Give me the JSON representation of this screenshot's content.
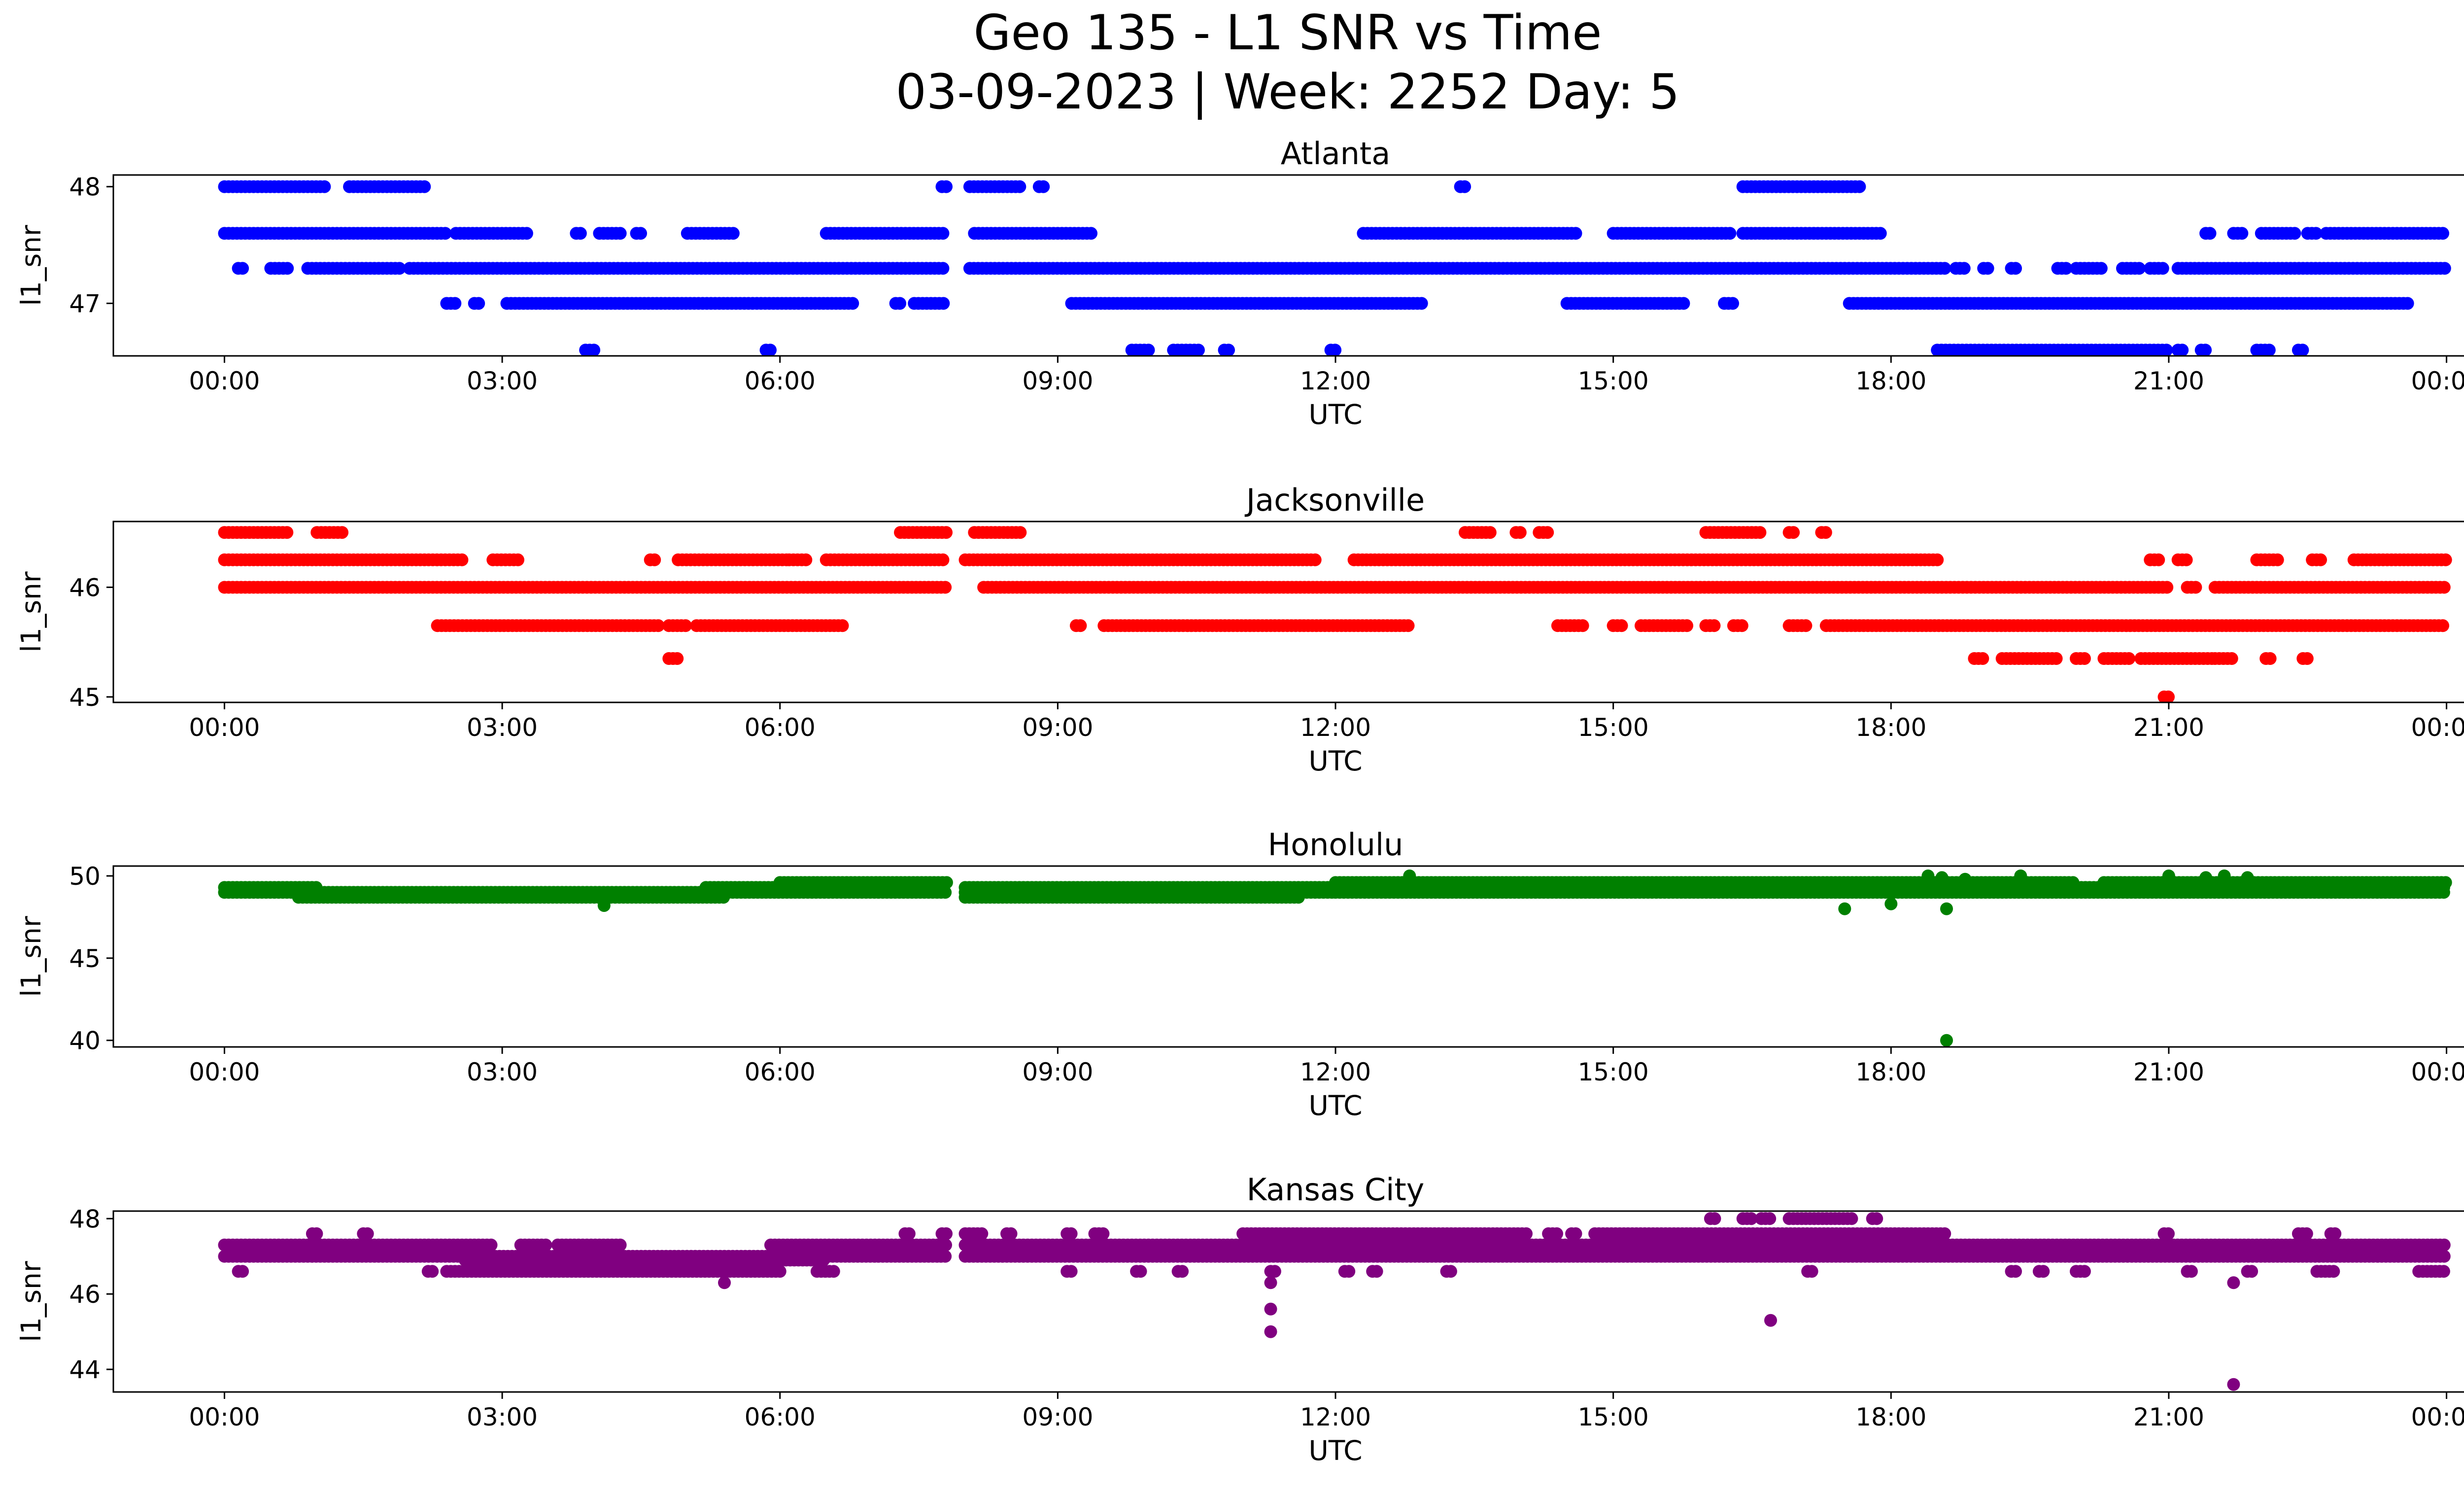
{
  "figure": {
    "title_line1": "Geo 135 - L1 SNR vs Time",
    "title_line2": "03-09-2023 | Week: 2252 Day: 5"
  },
  "chart_data": [
    {
      "type": "scatter",
      "title": "Atlanta",
      "xlabel": "UTC",
      "ylabel": "l1_snr",
      "color": "#0000ff",
      "x_ticks": [
        "00:00",
        "03:00",
        "06:00",
        "09:00",
        "12:00",
        "15:00",
        "18:00",
        "21:00",
        "00:00"
      ],
      "y_ticks": [
        47,
        48
      ],
      "x_range_hours": [
        -1.2,
        25.2
      ],
      "y_range": [
        46.55,
        48.1
      ],
      "levels": [
        {
          "y": 48.0,
          "segments": [
            [
              0.0,
              1.1
            ],
            [
              1.35,
              2.2
            ],
            [
              7.75,
              7.8
            ],
            [
              8.05,
              8.6
            ],
            [
              8.8,
              8.85
            ],
            [
              13.35,
              13.4
            ],
            [
              16.4,
              17.7
            ]
          ]
        },
        {
          "y": 47.6,
          "segments": [
            [
              0.0,
              2.4
            ],
            [
              2.5,
              3.3
            ],
            [
              3.8,
              3.85
            ],
            [
              4.05,
              4.3
            ],
            [
              4.45,
              4.5
            ],
            [
              5.0,
              5.5
            ],
            [
              6.5,
              7.8
            ],
            [
              8.1,
              9.4
            ],
            [
              12.3,
              14.6
            ],
            [
              15.0,
              16.3
            ],
            [
              16.4,
              17.9
            ],
            [
              21.4,
              21.45
            ],
            [
              21.7,
              21.8
            ],
            [
              22.0,
              22.4
            ],
            [
              22.5,
              22.6
            ],
            [
              22.7,
              24.0
            ]
          ]
        },
        {
          "y": 47.3,
          "segments": [
            [
              0.15,
              0.2
            ],
            [
              0.5,
              0.7
            ],
            [
              0.9,
              1.9
            ],
            [
              2.0,
              7.8
            ],
            [
              8.05,
              18.6
            ],
            [
              18.7,
              18.8
            ],
            [
              19.0,
              19.05
            ],
            [
              19.3,
              19.35
            ],
            [
              19.8,
              19.9
            ],
            [
              20.0,
              20.3
            ],
            [
              20.5,
              20.7
            ],
            [
              20.8,
              20.95
            ],
            [
              21.1,
              24.0
            ]
          ]
        },
        {
          "y": 47.0,
          "segments": [
            [
              2.4,
              2.5
            ],
            [
              2.7,
              2.75
            ],
            [
              3.05,
              6.8
            ],
            [
              7.25,
              7.3
            ],
            [
              7.45,
              7.8
            ],
            [
              9.15,
              12.95
            ],
            [
              14.5,
              15.8
            ],
            [
              16.2,
              16.3
            ],
            [
              17.55,
              23.6
            ]
          ]
        },
        {
          "y": 46.6,
          "segments": [
            [
              3.9,
              4.0
            ],
            [
              5.85,
              5.9
            ],
            [
              9.8,
              10.0
            ],
            [
              10.25,
              10.55
            ],
            [
              10.8,
              10.85
            ],
            [
              11.95,
              12.0
            ],
            [
              18.5,
              21.0
            ],
            [
              21.1,
              21.15
            ],
            [
              21.35,
              21.4
            ],
            [
              21.95,
              22.1
            ],
            [
              22.4,
              22.45
            ]
          ]
        }
      ],
      "points": []
    },
    {
      "type": "scatter",
      "title": "Jacksonville",
      "xlabel": "UTC",
      "ylabel": "l1_snr",
      "color": "#ff0000",
      "x_ticks": [
        "00:00",
        "03:00",
        "06:00",
        "09:00",
        "12:00",
        "15:00",
        "18:00",
        "21:00",
        "00:00"
      ],
      "y_ticks": [
        45,
        46
      ],
      "x_range_hours": [
        -1.2,
        25.2
      ],
      "y_range": [
        44.95,
        46.6
      ],
      "levels": [
        {
          "y": 46.5,
          "segments": [
            [
              0.0,
              0.7
            ],
            [
              1.0,
              1.3
            ],
            [
              7.3,
              7.8
            ],
            [
              8.1,
              8.6
            ],
            [
              13.4,
              13.7
            ],
            [
              13.95,
              14.0
            ],
            [
              14.2,
              14.3
            ],
            [
              16.0,
              16.6
            ],
            [
              16.9,
              16.95
            ],
            [
              17.25,
              17.3
            ]
          ]
        },
        {
          "y": 46.25,
          "segments": [
            [
              0.0,
              2.6
            ],
            [
              2.9,
              3.2
            ],
            [
              4.6,
              4.65
            ],
            [
              4.9,
              6.1
            ],
            [
              6.1,
              6.3
            ],
            [
              6.5,
              7.8
            ],
            [
              8.0,
              11.8
            ],
            [
              12.2,
              18.5
            ],
            [
              20.8,
              20.9
            ],
            [
              21.1,
              21.2
            ],
            [
              21.95,
              22.2
            ],
            [
              22.55,
              22.65
            ],
            [
              23.0,
              24.0
            ]
          ]
        },
        {
          "y": 46.0,
          "segments": [
            [
              0.0,
              7.8
            ],
            [
              8.2,
              21.0
            ],
            [
              21.2,
              21.3
            ],
            [
              21.5,
              24.0
            ]
          ]
        },
        {
          "y": 45.65,
          "segments": [
            [
              2.3,
              4.7
            ],
            [
              4.8,
              5.0
            ],
            [
              5.1,
              6.7
            ],
            [
              9.2,
              9.25
            ],
            [
              9.5,
              12.8
            ],
            [
              14.4,
              14.7
            ],
            [
              15.0,
              15.1
            ],
            [
              15.3,
              15.8
            ],
            [
              16.0,
              16.1
            ],
            [
              16.3,
              16.4
            ],
            [
              16.9,
              17.1
            ],
            [
              17.3,
              24.0
            ]
          ]
        },
        {
          "y": 45.35,
          "segments": [
            [
              4.8,
              4.9
            ],
            [
              18.9,
              19.0
            ],
            [
              19.2,
              19.8
            ],
            [
              20.0,
              20.1
            ],
            [
              20.3,
              20.6
            ],
            [
              20.7,
              21.5
            ],
            [
              21.5,
              21.7
            ],
            [
              22.05,
              22.1
            ],
            [
              22.45,
              22.5
            ]
          ]
        },
        {
          "y": 45.0,
          "segments": [
            [
              20.95,
              21.0
            ]
          ]
        }
      ],
      "points": []
    },
    {
      "type": "scatter",
      "title": "Honolulu",
      "xlabel": "UTC",
      "ylabel": "l1_snr",
      "color": "#008000",
      "x_ticks": [
        "00:00",
        "03:00",
        "06:00",
        "09:00",
        "12:00",
        "15:00",
        "18:00",
        "21:00",
        "00:00"
      ],
      "y_ticks": [
        40,
        45,
        50
      ],
      "x_range_hours": [
        -1.2,
        25.2
      ],
      "y_range": [
        39.6,
        50.6
      ],
      "levels": [
        {
          "y": 49.3,
          "segments": [
            [
              0.0,
              1.0
            ],
            [
              5.2,
              7.8
            ],
            [
              8.0,
              12.0
            ],
            [
              12.0,
              24.0
            ]
          ]
        },
        {
          "y": 49.0,
          "segments": [
            [
              0.0,
              7.8
            ],
            [
              8.0,
              12.0
            ],
            [
              12.0,
              24.0
            ]
          ]
        },
        {
          "y": 48.7,
          "segments": [
            [
              0.8,
              5.4
            ],
            [
              8.0,
              11.6
            ]
          ]
        },
        {
          "y": 49.6,
          "segments": [
            [
              6.0,
              7.8
            ],
            [
              12.0,
              20.0
            ],
            [
              20.3,
              24.0
            ]
          ]
        }
      ],
      "points": [
        [
          4.1,
          48.2
        ],
        [
          17.5,
          48.0
        ],
        [
          18.0,
          48.3
        ],
        [
          18.6,
          48.0
        ],
        [
          18.6,
          40.0
        ],
        [
          12.8,
          50.0
        ],
        [
          18.4,
          50.0
        ],
        [
          18.55,
          49.9
        ],
        [
          18.8,
          49.8
        ],
        [
          19.4,
          50.0
        ],
        [
          21.0,
          50.0
        ],
        [
          21.4,
          49.9
        ],
        [
          21.6,
          50.0
        ],
        [
          21.85,
          49.9
        ]
      ]
    },
    {
      "type": "scatter",
      "title": "Kansas City",
      "xlabel": "UTC",
      "ylabel": "l1_snr",
      "color": "#800080",
      "x_ticks": [
        "00:00",
        "03:00",
        "06:00",
        "09:00",
        "12:00",
        "15:00",
        "18:00",
        "21:00",
        "00:00"
      ],
      "y_ticks": [
        44,
        46,
        48
      ],
      "x_range_hours": [
        -1.2,
        25.2
      ],
      "y_range": [
        43.4,
        48.2
      ],
      "levels": [
        {
          "y": 47.6,
          "segments": [
            [
              0.95,
              1.0
            ],
            [
              1.5,
              1.55
            ],
            [
              7.35,
              7.4
            ],
            [
              7.75,
              7.8
            ],
            [
              8.0,
              8.2
            ],
            [
              8.45,
              8.5
            ],
            [
              9.1,
              9.15
            ],
            [
              9.4,
              9.5
            ],
            [
              11.0,
              14.1
            ],
            [
              14.3,
              14.4
            ],
            [
              14.55,
              14.6
            ],
            [
              14.8,
              18.6
            ],
            [
              20.95,
              21.0
            ],
            [
              22.4,
              22.5
            ],
            [
              22.75,
              22.8
            ]
          ]
        },
        {
          "y": 47.3,
          "segments": [
            [
              0.0,
              2.9
            ],
            [
              3.2,
              3.5
            ],
            [
              3.6,
              4.3
            ],
            [
              5.9,
              7.8
            ],
            [
              8.0,
              24.0
            ]
          ]
        },
        {
          "y": 47.0,
          "segments": [
            [
              0.0,
              7.8
            ],
            [
              8.0,
              24.0
            ]
          ]
        },
        {
          "y": 46.9,
          "segments": [
            [
              2.6,
              6.5
            ]
          ]
        },
        {
          "y": 46.6,
          "segments": [
            [
              0.15,
              0.2
            ],
            [
              2.2,
              2.25
            ],
            [
              2.4,
              6.0
            ],
            [
              6.4,
              6.6
            ],
            [
              9.1,
              9.15
            ],
            [
              9.85,
              9.9
            ],
            [
              10.3,
              10.35
            ],
            [
              11.3,
              11.35
            ],
            [
              12.1,
              12.15
            ],
            [
              12.4,
              12.45
            ],
            [
              13.2,
              13.25
            ],
            [
              17.1,
              17.15
            ],
            [
              19.3,
              19.35
            ],
            [
              19.6,
              19.65
            ],
            [
              20.0,
              20.1
            ],
            [
              21.2,
              21.25
            ],
            [
              21.85,
              21.9
            ],
            [
              22.6,
              22.8
            ],
            [
              23.7,
              24.0
            ]
          ]
        },
        {
          "y": 48.0,
          "segments": [
            [
              16.05,
              16.1
            ],
            [
              16.4,
              16.5
            ],
            [
              16.6,
              16.7
            ],
            [
              16.9,
              17.6
            ],
            [
              17.8,
              17.85
            ]
          ]
        }
      ],
      "points": [
        [
          11.3,
          46.3
        ],
        [
          11.3,
          45.6
        ],
        [
          11.3,
          45.0
        ],
        [
          5.4,
          46.3
        ],
        [
          16.7,
          45.3
        ],
        [
          21.7,
          46.3
        ],
        [
          21.7,
          43.6
        ]
      ]
    }
  ]
}
